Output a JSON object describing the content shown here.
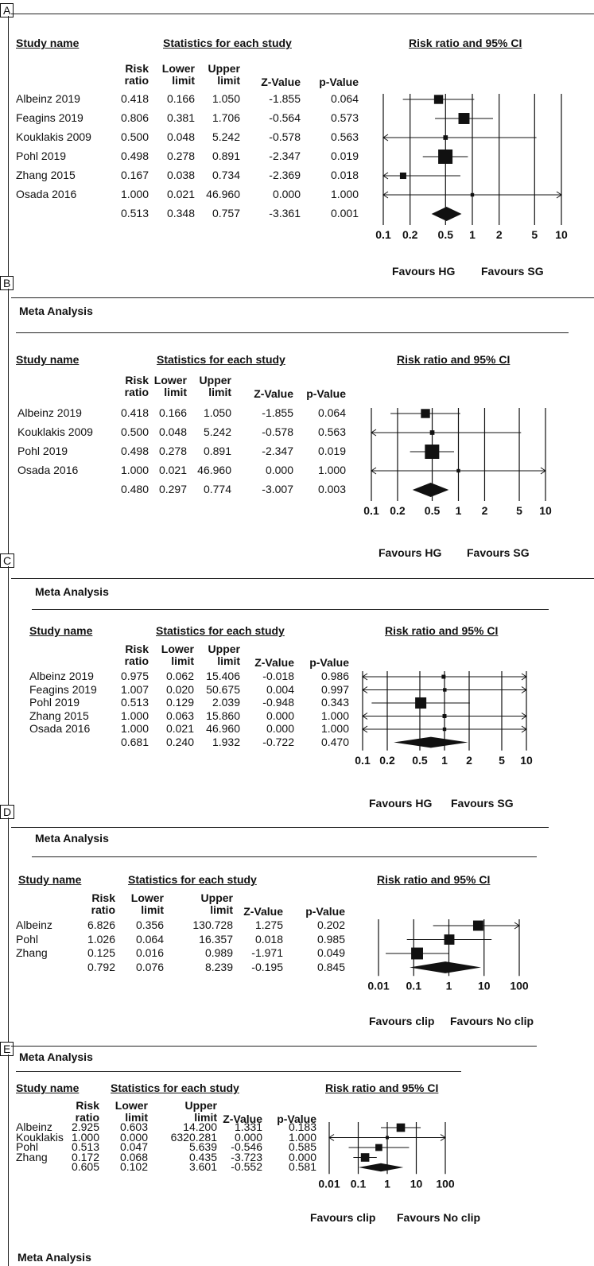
{
  "panels": [
    {
      "label": "A",
      "meta_label": "",
      "headers": {
        "study_name": "Study name",
        "stats": "Statistics for each study",
        "plot_title": "Risk ratio and 95% CI",
        "risk_ratio": "Risk ratio",
        "lower": "Lower limit",
        "upper": "Upper limit",
        "z": "Z-Value",
        "p": "p-Value"
      },
      "rows": [
        {
          "name": "Albeinz 2019",
          "rr": "0.418",
          "lower": "0.166",
          "upper": "1.050",
          "z": "-1.855",
          "p": "0.064"
        },
        {
          "name": "Feagins 2019",
          "rr": "0.806",
          "lower": "0.381",
          "upper": "1.706",
          "z": "-0.564",
          "p": "0.573"
        },
        {
          "name": "Kouklakis 2009",
          "rr": "0.500",
          "lower": "0.048",
          "upper": "5.242",
          "z": "-0.578",
          "p": "0.563"
        },
        {
          "name": "Pohl 2019",
          "rr": "0.498",
          "lower": "0.278",
          "upper": "0.891",
          "z": "-2.347",
          "p": "0.019"
        },
        {
          "name": "Zhang 2015",
          "rr": "0.167",
          "lower": "0.038",
          "upper": "0.734",
          "z": "-2.369",
          "p": "0.018"
        },
        {
          "name": "Osada 2016",
          "rr": "1.000",
          "lower": "0.021",
          "upper": "46.960",
          "z": "0.000",
          "p": "1.000"
        }
      ],
      "summary": {
        "rr": "0.513",
        "lower": "0.348",
        "upper": "0.757",
        "z": "-3.361",
        "p": "0.001"
      },
      "favours_left": "Favours HG",
      "favours_right": "Favours SG"
    },
    {
      "label": "B",
      "meta_label": "Meta Analysis",
      "headers": {
        "study_name": "Study name",
        "stats": "Statistics for each study",
        "plot_title": "Risk ratio and 95% CI",
        "risk_ratio": "Risk ratio",
        "lower": "Lower limit",
        "upper": "Upper limit",
        "z": "Z-Value",
        "p": "p-Value"
      },
      "rows": [
        {
          "name": "Albeinz 2019",
          "rr": "0.418",
          "lower": "0.166",
          "upper": "1.050",
          "z": "-1.855",
          "p": "0.064"
        },
        {
          "name": "Kouklakis 2009",
          "rr": "0.500",
          "lower": "0.048",
          "upper": "5.242",
          "z": "-0.578",
          "p": "0.563"
        },
        {
          "name": "Pohl 2019",
          "rr": "0.498",
          "lower": "0.278",
          "upper": "0.891",
          "z": "-2.347",
          "p": "0.019"
        },
        {
          "name": "Osada 2016",
          "rr": "1.000",
          "lower": "0.021",
          "upper": "46.960",
          "z": "0.000",
          "p": "1.000"
        }
      ],
      "summary": {
        "rr": "0.480",
        "lower": "0.297",
        "upper": "0.774",
        "z": "-3.007",
        "p": "0.003"
      },
      "favours_left": "Favours HG",
      "favours_right": "Favours SG"
    },
    {
      "label": "C",
      "meta_label": "Meta Analysis",
      "headers": {
        "study_name": "Study name",
        "stats": "Statistics for each study",
        "plot_title": "Risk ratio and 95% CI",
        "risk_ratio": "Risk ratio",
        "lower": "Lower limit",
        "upper": "Upper limit",
        "z": "Z-Value",
        "p": "p-Value"
      },
      "rows": [
        {
          "name": "Albeinz 2019",
          "rr": "0.975",
          "lower": "0.062",
          "upper": "15.406",
          "z": "-0.018",
          "p": "0.986"
        },
        {
          "name": "Feagins 2019",
          "rr": "1.007",
          "lower": "0.020",
          "upper": "50.675",
          "z": "0.004",
          "p": "0.997"
        },
        {
          "name": "Pohl 2019",
          "rr": "0.513",
          "lower": "0.129",
          "upper": "2.039",
          "z": "-0.948",
          "p": "0.343"
        },
        {
          "name": "Zhang 2015",
          "rr": "1.000",
          "lower": "0.063",
          "upper": "15.860",
          "z": "0.000",
          "p": "1.000"
        },
        {
          "name": "Osada 2016",
          "rr": "1.000",
          "lower": "0.021",
          "upper": "46.960",
          "z": "0.000",
          "p": "1.000"
        }
      ],
      "summary": {
        "rr": "0.681",
        "lower": "0.240",
        "upper": "1.932",
        "z": "-0.722",
        "p": "0.470"
      },
      "favours_left": "Favours HG",
      "favours_right": "Favours SG"
    },
    {
      "label": "D",
      "meta_label": "Meta Analysis",
      "headers": {
        "study_name": "Study name",
        "stats": "Statistics for each study",
        "plot_title": "Risk ratio and 95% CI",
        "risk_ratio": "Risk ratio",
        "lower": "Lower limit",
        "upper": "Upper limit",
        "z": "Z-Value",
        "p": "p-Value"
      },
      "rows": [
        {
          "name": "Albeinz",
          "rr": "6.826",
          "lower": "0.356",
          "upper": "130.728",
          "z": "1.275",
          "p": "0.202"
        },
        {
          "name": "Pohl",
          "rr": "1.026",
          "lower": "0.064",
          "upper": "16.357",
          "z": "0.018",
          "p": "0.985"
        },
        {
          "name": "Zhang",
          "rr": "0.125",
          "lower": "0.016",
          "upper": "0.989",
          "z": "-1.971",
          "p": "0.049"
        }
      ],
      "summary": {
        "rr": "0.792",
        "lower": "0.076",
        "upper": "8.239",
        "z": "-0.195",
        "p": "0.845"
      },
      "favours_left": "Favours clip",
      "favours_right": "Favours No clip"
    },
    {
      "label": "E",
      "meta_label": "Meta Analysis",
      "headers": {
        "study_name": "Study name",
        "stats": "Statistics for each study",
        "plot_title": "Risk ratio and 95% CI",
        "risk_ratio": "Risk ratio",
        "lower": "Lower limit",
        "upper": "Upper limit",
        "z": "Z-Value",
        "p": "p-Value"
      },
      "rows": [
        {
          "name": "Albeinz",
          "rr": "2.925",
          "lower": "0.603",
          "upper": "14.200",
          "z": "1.331",
          "p": "0.183"
        },
        {
          "name": "Kouklakis",
          "rr": "1.000",
          "lower": "0.000",
          "upper": "6320.281",
          "z": "0.000",
          "p": "1.000"
        },
        {
          "name": "Pohl",
          "rr": "0.513",
          "lower": "0.047",
          "upper": "5.639",
          "z": "-0.546",
          "p": "0.585"
        },
        {
          "name": "Zhang",
          "rr": "0.172",
          "lower": "0.068",
          "upper": "0.435",
          "z": "-3.723",
          "p": "0.000"
        }
      ],
      "summary": {
        "rr": "0.605",
        "lower": "0.102",
        "upper": "3.601",
        "z": "-0.552",
        "p": "0.581"
      },
      "favours_left": "Favours clip",
      "favours_right": "Favours No clip"
    }
  ],
  "footer_meta_label": "Meta Analysis",
  "chart_data": [
    {
      "type": "forest",
      "panel": "A",
      "title": "Risk ratio and 95% CI",
      "scale": "log",
      "xlim": [
        0.1,
        10
      ],
      "ticks": [
        0.1,
        0.2,
        0.5,
        1,
        2,
        5,
        10
      ],
      "tick_labels": [
        "0.1",
        "0.2",
        "0.5",
        "1",
        "2",
        "5",
        "10"
      ],
      "studies": [
        {
          "name": "Albeinz 2019",
          "rr": 0.418,
          "lower": 0.166,
          "upper": 1.05,
          "weight": 2
        },
        {
          "name": "Feagins 2019",
          "rr": 0.806,
          "lower": 0.381,
          "upper": 1.706,
          "weight": 3
        },
        {
          "name": "Kouklakis 2009",
          "rr": 0.5,
          "lower": 0.048,
          "upper": 5.242,
          "weight": 0.5
        },
        {
          "name": "Pohl 2019",
          "rr": 0.498,
          "lower": 0.278,
          "upper": 0.891,
          "weight": 5
        },
        {
          "name": "Zhang 2015",
          "rr": 0.167,
          "lower": 0.038,
          "upper": 0.734,
          "weight": 1
        },
        {
          "name": "Osada 2016",
          "rr": 1.0,
          "lower": 0.021,
          "upper": 46.96,
          "weight": 0.3
        }
      ],
      "summary": {
        "rr": 0.513,
        "lower": 0.348,
        "upper": 0.757
      },
      "favours": [
        "Favours HG",
        "Favours SG"
      ]
    },
    {
      "type": "forest",
      "panel": "B",
      "title": "Risk ratio and 95% CI",
      "scale": "log",
      "xlim": [
        0.1,
        10
      ],
      "ticks": [
        0.1,
        0.2,
        0.5,
        1,
        2,
        5,
        10
      ],
      "tick_labels": [
        "0.1",
        "0.2",
        "0.5",
        "1",
        "2",
        "5",
        "10"
      ],
      "studies": [
        {
          "name": "Albeinz 2019",
          "rr": 0.418,
          "lower": 0.166,
          "upper": 1.05,
          "weight": 2
        },
        {
          "name": "Kouklakis 2009",
          "rr": 0.5,
          "lower": 0.048,
          "upper": 5.242,
          "weight": 0.5
        },
        {
          "name": "Pohl 2019",
          "rr": 0.498,
          "lower": 0.278,
          "upper": 0.891,
          "weight": 5
        },
        {
          "name": "Osada 2016",
          "rr": 1.0,
          "lower": 0.021,
          "upper": 46.96,
          "weight": 0.3
        }
      ],
      "summary": {
        "rr": 0.48,
        "lower": 0.297,
        "upper": 0.774
      },
      "favours": [
        "Favours HG",
        "Favours SG"
      ]
    },
    {
      "type": "forest",
      "panel": "C",
      "title": "Risk ratio and 95% CI",
      "scale": "log",
      "xlim": [
        0.1,
        10
      ],
      "ticks": [
        0.1,
        0.2,
        0.5,
        1,
        2,
        5,
        10
      ],
      "tick_labels": [
        "0.1",
        "0.2",
        "0.5",
        "1",
        "2",
        "5",
        "10"
      ],
      "studies": [
        {
          "name": "Albeinz 2019",
          "rr": 0.975,
          "lower": 0.062,
          "upper": 15.406,
          "weight": 0.5
        },
        {
          "name": "Feagins 2019",
          "rr": 1.007,
          "lower": 0.02,
          "upper": 50.675,
          "weight": 0.4
        },
        {
          "name": "Pohl 2019",
          "rr": 0.513,
          "lower": 0.129,
          "upper": 2.039,
          "weight": 4
        },
        {
          "name": "Zhang 2015",
          "rr": 1.0,
          "lower": 0.063,
          "upper": 15.86,
          "weight": 0.5
        },
        {
          "name": "Osada 2016",
          "rr": 1.0,
          "lower": 0.021,
          "upper": 46.96,
          "weight": 0.4
        }
      ],
      "summary": {
        "rr": 0.681,
        "lower": 0.24,
        "upper": 1.932
      },
      "favours": [
        "Favours HG",
        "Favours SG"
      ]
    },
    {
      "type": "forest",
      "panel": "D",
      "title": "Risk ratio and 95% CI",
      "scale": "log",
      "xlim": [
        0.01,
        100
      ],
      "ticks": [
        0.01,
        0.1,
        1,
        10,
        100
      ],
      "tick_labels": [
        "0.01",
        "0.1",
        "1",
        "10",
        "100"
      ],
      "studies": [
        {
          "name": "Albeinz",
          "rr": 6.826,
          "lower": 0.356,
          "upper": 130.728,
          "weight": 3
        },
        {
          "name": "Pohl",
          "rr": 1.026,
          "lower": 0.064,
          "upper": 16.357,
          "weight": 3
        },
        {
          "name": "Zhang",
          "rr": 0.125,
          "lower": 0.016,
          "upper": 0.989,
          "weight": 4
        }
      ],
      "summary": {
        "rr": 0.792,
        "lower": 0.076,
        "upper": 8.239
      },
      "favours": [
        "Favours clip",
        "Favours No clip"
      ]
    },
    {
      "type": "forest",
      "panel": "E",
      "title": "Risk ratio and 95% CI",
      "scale": "log",
      "xlim": [
        0.01,
        100
      ],
      "ticks": [
        0.01,
        0.1,
        1,
        10,
        100
      ],
      "tick_labels": [
        "0.01",
        "0.1",
        "1",
        "10",
        "100"
      ],
      "studies": [
        {
          "name": "Albeinz",
          "rr": 2.925,
          "lower": 0.603,
          "upper": 14.2,
          "weight": 3
        },
        {
          "name": "Kouklakis",
          "rr": 1.0,
          "lower": 0.0,
          "upper": 6320.281,
          "weight": 0.3
        },
        {
          "name": "Pohl",
          "rr": 0.513,
          "lower": 0.047,
          "upper": 5.639,
          "weight": 2
        },
        {
          "name": "Zhang",
          "rr": 0.172,
          "lower": 0.068,
          "upper": 0.435,
          "weight": 3
        }
      ],
      "summary": {
        "rr": 0.605,
        "lower": 0.102,
        "upper": 3.601
      },
      "favours": [
        "Favours clip",
        "Favours No clip"
      ]
    }
  ]
}
